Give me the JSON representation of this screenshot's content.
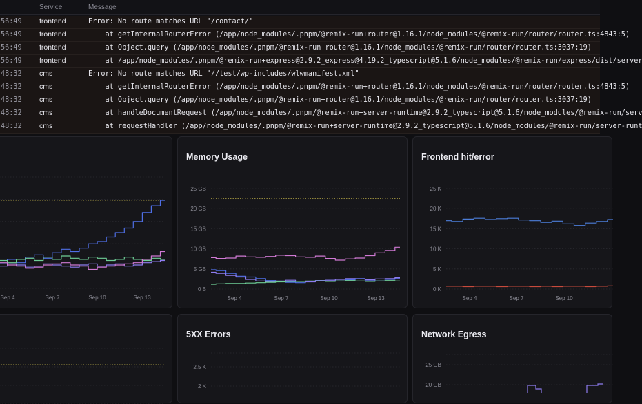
{
  "log": {
    "headers": {
      "service": "Service",
      "message": "Message"
    },
    "rows": [
      {
        "time": "56:49",
        "service": "frontend",
        "message": "Error: No route matches URL \"/contact/\""
      },
      {
        "time": "56:49",
        "service": "frontend",
        "message": "    at getInternalRouterError (/app/node_modules/.pnpm/@remix-run+router@1.16.1/node_modules/@remix-run/router/router.ts:4843:5)"
      },
      {
        "time": "56:49",
        "service": "frontend",
        "message": "    at Object.query (/app/node_modules/.pnpm/@remix-run+router@1.16.1/node_modules/@remix-run/router/router.ts:3037:19)"
      },
      {
        "time": "56:49",
        "service": "frontend",
        "message": "    at /app/node_modules/.pnpm/@remix-run+express@2.9.2_express@4.19.2_typescript@5.1.6/node_modules/@remix-run/express/dist/server"
      },
      {
        "time": "48:32",
        "service": "cms",
        "message": "Error: No route matches URL \"//test/wp-includes/wlwmanifest.xml\""
      },
      {
        "time": "48:32",
        "service": "cms",
        "message": "    at getInternalRouterError (/app/node_modules/.pnpm/@remix-run+router@1.16.1/node_modules/@remix-run/router/router.ts:4843:5)"
      },
      {
        "time": "48:32",
        "service": "cms",
        "message": "    at Object.query (/app/node_modules/.pnpm/@remix-run+router@1.16.1/node_modules/@remix-run/router/router.ts:3037:19)"
      },
      {
        "time": "48:32",
        "service": "cms",
        "message": "    at handleDocumentRequest (/app/node_modules/.pnpm/@remix-run+server-runtime@2.9.2_typescript@5.1.6/node_modules/@remix-run/serv"
      },
      {
        "time": "48:32",
        "service": "cms",
        "message": "    at requestHandler (/app/node_modules/.pnpm/@remix-run+server-runtime@2.9.2_typescript@5.1.6/node_modules/@remix-run/server-runt"
      }
    ]
  },
  "colors": {
    "blue": "#4f6fe6",
    "pink": "#d079d4",
    "green": "#6fcf97",
    "purple": "#8e7cf0",
    "yellow": "#a39640",
    "red": "#c74a3c",
    "lightblue": "#4c7ed9"
  },
  "cards": {
    "cpu": {
      "title": ""
    },
    "memory": {
      "title": "Memory Usage"
    },
    "hit": {
      "title": "Frontend hit/error"
    },
    "bl": {
      "title": ""
    },
    "errors": {
      "title": "5XX Errors"
    },
    "egress": {
      "title": "Network Egress"
    }
  },
  "chart_data": [
    {
      "id": "cpu",
      "type": "line",
      "title": "",
      "x_ticks": [
        "Sep 4",
        "Sep 7",
        "Sep 10",
        "Sep 13"
      ],
      "series": [
        {
          "color": "blue",
          "values": [
            2.0,
            2.2,
            2.6,
            2.3,
            2.8,
            3.0,
            2.7,
            3.2,
            3.5,
            3.3,
            3.6,
            4.0,
            4.2,
            4.6,
            5.0,
            5.4,
            6.0,
            6.8,
            7.4,
            7.9
          ]
        },
        {
          "color": "green",
          "values": [
            2.4,
            2.5,
            2.3,
            2.6,
            2.7,
            2.5,
            2.8,
            2.6,
            2.9,
            2.7,
            2.6,
            2.8,
            2.7,
            2.5,
            2.6,
            2.8,
            2.6,
            2.5,
            2.7,
            2.6
          ]
        },
        {
          "color": "purple",
          "values": [
            2.1,
            2.0,
            2.2,
            2.1,
            1.9,
            2.0,
            2.2,
            2.1,
            2.0,
            1.9,
            2.1,
            2.2,
            2.0,
            2.1,
            2.2,
            2.0,
            2.1,
            2.3,
            2.4,
            2.5
          ]
        },
        {
          "color": "pink",
          "values": [
            2.2,
            2.3,
            2.1,
            2.0,
            1.8,
            1.9,
            2.1,
            2.2,
            2.3,
            2.1,
            2.0,
            1.7,
            1.9,
            2.0,
            2.1,
            2.2,
            2.3,
            2.6,
            2.9,
            3.3
          ]
        }
      ],
      "y_max": 10,
      "threshold": 7.9
    },
    {
      "id": "memory",
      "type": "line",
      "title": "Memory Usage",
      "y_ticks": [
        "0 B",
        "5 GB",
        "10 GB",
        "15 GB",
        "20 GB",
        "25 GB"
      ],
      "x_ticks": [
        "Sep 4",
        "Sep 7",
        "Sep 10",
        "Sep 13"
      ],
      "threshold": 22.5,
      "series": [
        {
          "color": "pink",
          "values": [
            7.8,
            7.6,
            7.7,
            8.2,
            8.0,
            7.9,
            8.1,
            8.4,
            8.3,
            8.0,
            7.9,
            8.2,
            7.6,
            7.2,
            7.5,
            7.7,
            8.3,
            9.0,
            9.6,
            10.4
          ]
        },
        {
          "color": "blue",
          "values": [
            4.8,
            4.6,
            3.9,
            3.2,
            3.0,
            2.6,
            2.1,
            1.9,
            1.7,
            1.6,
            1.9,
            2.1,
            2.2,
            2.0,
            2.3,
            2.6,
            2.2,
            2.0,
            2.4,
            2.6
          ]
        },
        {
          "color": "purple",
          "values": [
            4.2,
            3.9,
            3.4,
            3.0,
            2.4,
            2.0,
            1.8,
            2.0,
            2.2,
            1.9,
            1.8,
            2.1,
            2.2,
            2.4,
            2.6,
            2.5,
            2.3,
            2.5,
            2.6,
            2.8
          ]
        },
        {
          "color": "green",
          "values": [
            1.2,
            1.3,
            1.4,
            1.4,
            1.5,
            1.6,
            1.7,
            1.8,
            1.9,
            1.9,
            2.0,
            2.0,
            1.9,
            2.0,
            2.1,
            2.0,
            1.9,
            2.0,
            2.1,
            2.0
          ]
        }
      ]
    },
    {
      "id": "hit",
      "type": "line",
      "title": "Frontend hit/error",
      "y_ticks": [
        "0 K",
        "5 K",
        "10 K",
        "15 K",
        "20 K",
        "25 K"
      ],
      "x_ticks": [
        "Sep 4",
        "Sep 7",
        "Sep 10"
      ],
      "series": [
        {
          "color": "lightblue",
          "values": [
            17.0,
            16.8,
            17.4,
            17.6,
            17.3,
            17.5,
            17.6,
            17.2,
            17.0,
            16.6,
            16.9,
            16.2,
            15.8,
            16.4,
            16.8,
            17.3
          ]
        },
        {
          "color": "red",
          "values": [
            0.7,
            0.7,
            0.6,
            0.7,
            0.7,
            0.6,
            0.7,
            0.7,
            0.6,
            0.7,
            0.6,
            0.7,
            0.7,
            0.6,
            0.7,
            0.8
          ]
        }
      ]
    },
    {
      "id": "errors",
      "type": "line",
      "title": "5XX Errors",
      "y_ticks": [
        "2 K",
        "2.5 K"
      ]
    },
    {
      "id": "egress",
      "type": "line",
      "title": "Network Egress",
      "y_ticks": [
        "20 GB",
        "25 GB"
      ]
    }
  ]
}
